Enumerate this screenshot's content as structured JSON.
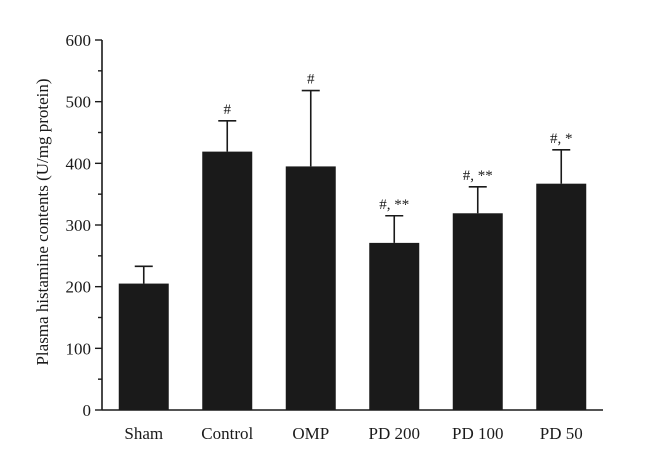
{
  "chart_data": {
    "type": "bar",
    "title": "",
    "xlabel": "",
    "ylabel": "Plasma histamine contents (U/mg protein)",
    "ylim": [
      0,
      600
    ],
    "yticks": [
      0,
      100,
      200,
      300,
      400,
      500,
      600
    ],
    "grid": false,
    "categories": [
      "Sham",
      "Control",
      "OMP",
      "PD 200",
      "PD 100",
      "PD 50"
    ],
    "series": [
      {
        "values": [
          205,
          419,
          395,
          271,
          319,
          367
        ],
        "error_upper": [
          28,
          50,
          123,
          44,
          43,
          55
        ],
        "annotations": [
          "",
          "#",
          "#",
          "#, **",
          "#, **",
          "#, *"
        ]
      }
    ],
    "colors": {
      "bar": "#1a1a1a",
      "axis": "#1a1a1a",
      "background": "#ffffff"
    }
  }
}
